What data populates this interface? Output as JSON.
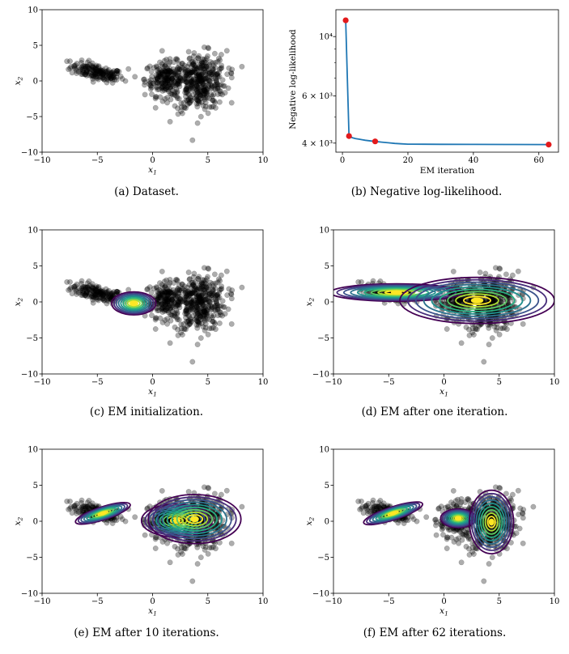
{
  "chart_data": [
    {
      "id": "a",
      "type": "scatter",
      "caption": "(a) Dataset.",
      "xlabel": "x1",
      "ylabel": "x2",
      "xlim": [
        -10,
        10
      ],
      "ylim": [
        -10,
        10
      ],
      "xticks": [
        "−10",
        "−5",
        "0",
        "5",
        "10"
      ],
      "yticks": [
        "10",
        "5",
        "0",
        "−5",
        "−10"
      ],
      "points_color": "#000000",
      "clusters": [
        {
          "center": [
            -5,
            1.2
          ],
          "spread": [
            1.2,
            0.7
          ],
          "corr": -0.6,
          "n": 170
        },
        {
          "center": [
            1.3,
            0.3
          ],
          "spread": [
            1.0,
            1.2
          ],
          "corr": 0.0,
          "n": 220
        },
        {
          "center": [
            4.3,
            -0.2
          ],
          "spread": [
            1.2,
            2.0
          ],
          "corr": 0.1,
          "n": 380
        }
      ],
      "contours": []
    },
    {
      "id": "b",
      "type": "line",
      "caption": "(b) Negative log-likelihood.",
      "xlabel": "EM iteration",
      "ylabel": "Negative log-likelihood",
      "yscale": "log",
      "xlim": [
        -2,
        66
      ],
      "ylim": [
        3700,
        12600
      ],
      "xticks": [
        "0",
        "20",
        "40",
        "60"
      ],
      "yticks": [
        "10⁴",
        "6 × 10³",
        "4 × 10³"
      ],
      "line_color": "#1f77b4",
      "marker_color": "#e31a1c",
      "x": [
        1,
        2,
        3,
        4,
        5,
        6,
        7,
        8,
        9,
        10,
        12,
        14,
        16,
        18,
        20,
        25,
        30,
        40,
        50,
        63
      ],
      "y": [
        11500,
        4250,
        4190,
        4160,
        4140,
        4120,
        4100,
        4085,
        4070,
        4060,
        4035,
        4010,
        3990,
        3975,
        3965,
        3960,
        3958,
        3955,
        3953,
        3950
      ],
      "markers": [
        [
          1,
          11500
        ],
        [
          2,
          4250
        ],
        [
          10,
          4060
        ],
        [
          63,
          3950
        ]
      ]
    },
    {
      "id": "c",
      "type": "scatter",
      "caption": "(c) EM initialization.",
      "xlabel": "x1",
      "ylabel": "x2",
      "xlim": [
        -10,
        10
      ],
      "ylim": [
        -10,
        10
      ],
      "xticks": [
        "−10",
        "−5",
        "0",
        "5",
        "10"
      ],
      "yticks": [
        "10",
        "5",
        "0",
        "−5",
        "−10"
      ],
      "contours": [
        {
          "center": [
            -1.7,
            -0.2
          ],
          "sx": 2.0,
          "sy": 1.6,
          "rot": 0
        }
      ]
    },
    {
      "id": "d",
      "type": "scatter",
      "caption": "(d) EM after one iteration.",
      "xlabel": "x1",
      "ylabel": "x2",
      "xlim": [
        -10,
        10
      ],
      "ylim": [
        -10,
        10
      ],
      "xticks": [
        "−10",
        "−5",
        "0",
        "5",
        "10"
      ],
      "yticks": [
        "10",
        "5",
        "0",
        "−5",
        "−10"
      ],
      "contours": [
        {
          "center": [
            -4.3,
            1.3
          ],
          "sx": 6.0,
          "sy": 1.2,
          "rot": 0
        },
        {
          "center": [
            3.0,
            0.2
          ],
          "sx": 7.0,
          "sy": 3.2,
          "rot": 0
        }
      ]
    },
    {
      "id": "e",
      "type": "scatter",
      "caption": "(e) EM after 10 iterations.",
      "xlabel": "x1",
      "ylabel": "x2",
      "xlim": [
        -10,
        10
      ],
      "ylim": [
        -10,
        10
      ],
      "xticks": [
        "−10",
        "−5",
        "0",
        "5",
        "10"
      ],
      "yticks": [
        "10",
        "5",
        "0",
        "−5",
        "−10"
      ],
      "contours": [
        {
          "center": [
            -4.5,
            1.1
          ],
          "sx": 2.6,
          "sy": 0.9,
          "rot": -18
        },
        {
          "center": [
            2.2,
            0.1
          ],
          "sx": 3.2,
          "sy": 2.3,
          "rot": 0
        },
        {
          "center": [
            3.8,
            0.3
          ],
          "sx": 4.2,
          "sy": 3.4,
          "rot": 0
        }
      ]
    },
    {
      "id": "f",
      "type": "scatter",
      "caption": "(f) EM after 62 iterations.",
      "xlabel": "x1",
      "ylabel": "x2",
      "xlim": [
        -10,
        10
      ],
      "ylim": [
        -10,
        10
      ],
      "xticks": [
        "−10",
        "−5",
        "0",
        "5",
        "10"
      ],
      "yticks": [
        "10",
        "5",
        "0",
        "−5",
        "−10"
      ],
      "contours": [
        {
          "center": [
            -4.6,
            1.1
          ],
          "sx": 2.8,
          "sy": 0.9,
          "rot": -18
        },
        {
          "center": [
            1.3,
            0.4
          ],
          "sx": 1.6,
          "sy": 1.3,
          "rot": 0
        },
        {
          "center": [
            4.3,
            -0.1
          ],
          "sx": 2.0,
          "sy": 4.4,
          "rot": 0
        }
      ]
    }
  ]
}
